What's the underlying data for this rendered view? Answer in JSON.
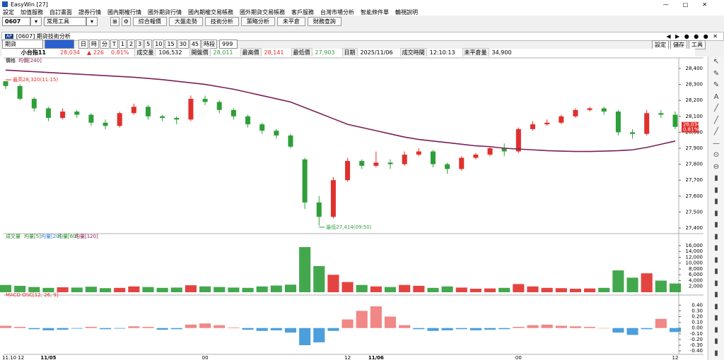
{
  "window": {
    "title": "EasyWin",
    "count": "[27]"
  },
  "menu": [
    "設定",
    "加值服務",
    "自訂畫面",
    "證券行情",
    "國內期權行情",
    "國外期貨行情",
    "國內期權交易帳務",
    "國外期貨交易帳務",
    "客戶服務",
    "台灣市場分析",
    "智能條件單",
    "輪視說明"
  ],
  "toolbar": {
    "code": "0607",
    "tool": "常用工具",
    "buttons": [
      "綜合報價",
      "大盤走勢",
      "技術分析",
      "策略分析",
      "未平倉",
      "財務查詢"
    ]
  },
  "subwindow": {
    "title": "[0607] 期貨技術分析",
    "buttons": [
      "設定",
      "儲存",
      "工具"
    ]
  },
  "controls": {
    "market": "期貨",
    "periods": [
      "日",
      "時",
      "分",
      "T",
      "1",
      "2",
      "3",
      "5",
      "10",
      "15",
      "30",
      "45",
      "時段"
    ],
    "count": "999"
  },
  "quote": {
    "symbol": "小台指11",
    "price": "28,034",
    "change": "226",
    "change_pct": "0.81%",
    "fields": [
      {
        "label": "成交量",
        "value": "106,532"
      },
      {
        "label": "開盤價",
        "value": "28,011"
      },
      {
        "label": "最高價",
        "value": "28,141"
      },
      {
        "label": "最低價",
        "value": "27,903"
      },
      {
        "label": "日期",
        "value": "2025/11/06"
      },
      {
        "label": "成交時間",
        "value": "12:10:13"
      },
      {
        "label": "未平倉量",
        "value": "34,900"
      }
    ]
  },
  "chart_data": [
    {
      "type": "candlestick",
      "legend": "價格",
      "categories": [
        "11.10 12",
        null,
        null,
        "11/05",
        null,
        null,
        null,
        null,
        null,
        null,
        null,
        null,
        null,
        null,
        "00",
        null,
        null,
        null,
        null,
        null,
        null,
        null,
        null,
        null,
        "12",
        null,
        "11/06",
        null,
        null,
        null,
        null,
        null,
        null,
        null,
        null,
        null,
        "00",
        null,
        null,
        null,
        null,
        null,
        null,
        null,
        null,
        null,
        null,
        "12"
      ],
      "open": [
        28320,
        28290,
        28210,
        28150,
        28090,
        28130,
        28110,
        28060,
        28040,
        28120,
        28160,
        28100,
        28090,
        28080,
        28210,
        28190,
        28140,
        28100,
        28050,
        28010,
        27980,
        27830,
        27560,
        27470,
        27700,
        27820,
        27790,
        27810,
        27800,
        27860,
        27880,
        27800,
        27770,
        27840,
        27860,
        27900,
        27880,
        28020,
        28050,
        28060,
        28100,
        28140,
        28150,
        28130,
        28000,
        27990,
        28120,
        28110
      ],
      "high": [
        28320,
        28300,
        28220,
        28160,
        28150,
        28140,
        28120,
        28080,
        28130,
        28180,
        28170,
        28110,
        28100,
        28230,
        28230,
        28200,
        28150,
        28110,
        28060,
        28020,
        27990,
        27840,
        27600,
        27720,
        27840,
        27830,
        27880,
        27830,
        27880,
        27900,
        27890,
        27810,
        27850,
        27870,
        27910,
        27930,
        28030,
        28070,
        28080,
        28110,
        28150,
        28160,
        28160,
        28140,
        28020,
        28140,
        28140,
        28130
      ],
      "low": [
        28270,
        28200,
        28130,
        28070,
        28080,
        28090,
        28040,
        28020,
        28030,
        28110,
        28080,
        28070,
        28050,
        28070,
        28170,
        28120,
        28080,
        28030,
        27990,
        27960,
        27900,
        27520,
        27414,
        27460,
        27690,
        27770,
        27780,
        27770,
        27790,
        27850,
        27780,
        27740,
        27760,
        27830,
        27850,
        27850,
        27870,
        28010,
        28040,
        28050,
        28090,
        28130,
        28110,
        27980,
        27960,
        27980,
        28090,
        28020
      ],
      "close": [
        28290,
        28210,
        28150,
        28090,
        28130,
        28110,
        28060,
        28040,
        28120,
        28160,
        28100,
        28090,
        28080,
        28210,
        28190,
        28140,
        28100,
        28050,
        28010,
        27980,
        27910,
        27560,
        27470,
        27700,
        27820,
        27790,
        27810,
        27800,
        27860,
        27880,
        27800,
        27770,
        27840,
        27860,
        27900,
        27880,
        28020,
        28050,
        28060,
        28100,
        28140,
        28150,
        28130,
        28000,
        27990,
        28120,
        28110,
        28034
      ],
      "up_color": "#e0302c",
      "down_color": "#2f9e3a",
      "series": [
        {
          "name": "均價[240]",
          "color": "#7b1f55",
          "values": [
            28390,
            28385,
            28380,
            28375,
            28370,
            28365,
            28360,
            28355,
            28350,
            28345,
            28338,
            28330,
            28320,
            28310,
            28300,
            28285,
            28270,
            28250,
            28230,
            28210,
            28190,
            28155,
            28120,
            28085,
            28050,
            28030,
            28010,
            27990,
            27970,
            27955,
            27945,
            27935,
            27925,
            27915,
            27910,
            27900,
            27895,
            27890,
            27885,
            27882,
            27880,
            27880,
            27882,
            27885,
            27890,
            27905,
            27925,
            27945
          ]
        }
      ],
      "ylim": [
        27369,
        28431
      ],
      "yticks": [
        {
          "value": 27400,
          "label": "27,400"
        },
        {
          "value": 27500,
          "label": "27,500"
        },
        {
          "value": 27600,
          "label": "27,600"
        },
        {
          "value": 27700,
          "label": "27,700"
        },
        {
          "value": 27800,
          "label": "27,800"
        },
        {
          "value": 27900,
          "label": "27,900"
        },
        {
          "value": 28000,
          "label": "28,000"
        },
        {
          "value": 28100,
          "label": "28,100"
        },
        {
          "value": 28200,
          "label": "28,200"
        },
        {
          "value": 28300,
          "label": "28,300"
        },
        {
          "value": 28400,
          "label": "28,400"
        }
      ],
      "annotations": [
        {
          "text": "最高28,320(11:15)",
          "value": 28320
        },
        {
          "text": "最低27,414(09:50)",
          "value": 27414
        }
      ],
      "last": {
        "value": 28034,
        "label": "28,034",
        "pct": "0.81%"
      }
    },
    {
      "type": "bar",
      "legend": "成交量",
      "legend_items": [
        {
          "name": "均量[5]",
          "color": "#2a8a2a"
        },
        {
          "name": "均量[20]",
          "color": "#2d7fc1"
        },
        {
          "name": "均量[60]",
          "color": "#1f8f1f"
        },
        {
          "name": "均量[120]",
          "color": "#8b2060"
        }
      ],
      "values": [
        2500,
        2200,
        1800,
        1500,
        1700,
        1600,
        1900,
        1400,
        1500,
        2000,
        1800,
        1500,
        1600,
        2400,
        2000,
        1800,
        1600,
        1500,
        2000,
        2300,
        2600,
        15500,
        9000,
        6000,
        3500,
        2500,
        2000,
        1800,
        2500,
        2200,
        1500,
        2000,
        1600,
        1200,
        1300,
        1500,
        2800,
        2000,
        1500,
        1400,
        1200,
        1300,
        1500,
        7500,
        5000,
        6500,
        4000,
        3000
      ],
      "ylim": [
        0,
        17450
      ],
      "yticks": [
        {
          "value": 2000,
          "label": "2,000"
        },
        {
          "value": 4000,
          "label": "4,000"
        },
        {
          "value": 6000,
          "label": "6,000"
        },
        {
          "value": 8000,
          "label": "8,000"
        },
        {
          "value": 10000,
          "label": "10,000"
        },
        {
          "value": 12000,
          "label": "12,000"
        },
        {
          "value": 14000,
          "label": "14,000"
        },
        {
          "value": 16000,
          "label": "16,000"
        }
      ]
    },
    {
      "type": "bar",
      "legend": "MACD OSC[12, 26, 9]",
      "pos_color": "#f07a7a",
      "neg_color": "#3a95d8",
      "values": [
        0.04,
        0.02,
        -0.02,
        -0.04,
        -0.03,
        -0.01,
        0.02,
        -0.02,
        -0.01,
        0.03,
        0.02,
        -0.03,
        -0.02,
        0.06,
        0.08,
        0.05,
        0.01,
        -0.03,
        -0.05,
        -0.04,
        -0.08,
        -0.3,
        -0.25,
        -0.05,
        0.15,
        0.3,
        0.38,
        0.2,
        0.05,
        -0.02,
        -0.05,
        -0.04,
        -0.02,
        -0.04,
        -0.03,
        -0.02,
        0.02,
        0.05,
        0.06,
        0.04,
        0.03,
        0.02,
        0,
        -0.08,
        -0.12,
        -0.02,
        0.16,
        -0.07
      ],
      "ylim": [
        -0.46,
        0.49
      ],
      "yticks": [
        {
          "value": -0.4,
          "label": "-0.40"
        },
        {
          "value": -0.3,
          "label": "-0.30"
        },
        {
          "value": -0.2,
          "label": "-0.20"
        },
        {
          "value": -0.1,
          "label": "-0.10"
        },
        {
          "value": 0,
          "label": "0.00"
        },
        {
          "value": 0.1,
          "label": "0.10"
        },
        {
          "value": 0.2,
          "label": "0.20"
        },
        {
          "value": 0.3,
          "label": "0.30"
        },
        {
          "value": 0.4,
          "label": "0.40"
        }
      ]
    }
  ]
}
